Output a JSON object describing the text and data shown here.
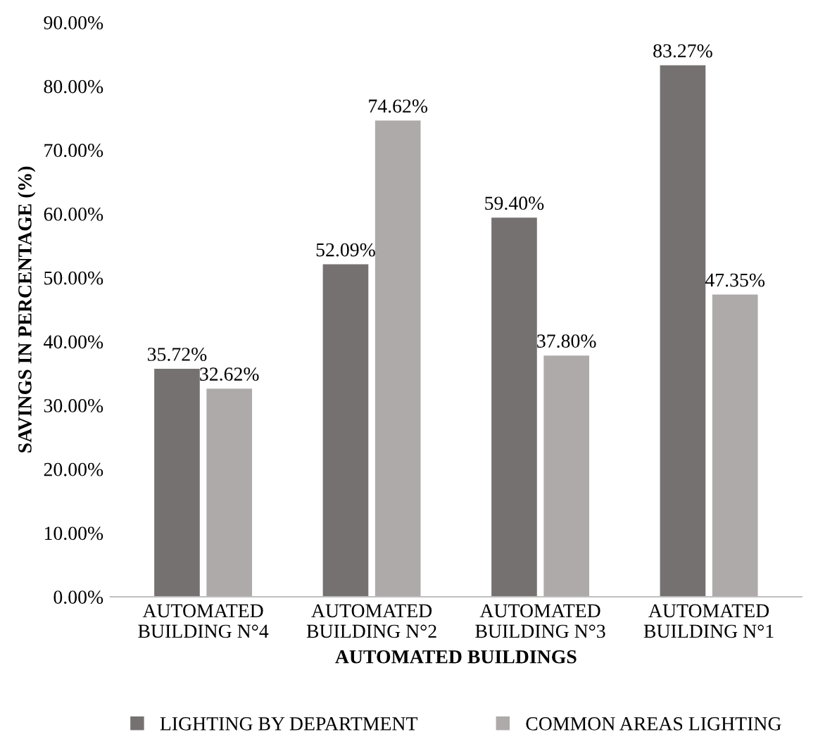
{
  "chart_data": {
    "type": "bar",
    "xlabel": "AUTOMATED BUILDINGS",
    "ylabel": "SAVINGS IN PERCENTAGE (%)",
    "categories": [
      "AUTOMATED\nBUILDING N°4",
      "AUTOMATED\nBUILDING N°2",
      "AUTOMATED\nBUILDING N°3",
      "AUTOMATED\nBUILDING N°1"
    ],
    "series": [
      {
        "name": "LIGHTING BY DEPARTMENT",
        "color": "#767171",
        "values": [
          35.72,
          52.09,
          59.4,
          83.27
        ],
        "value_labels": [
          "35.72%",
          "52.09%",
          "59.40%",
          "83.27%"
        ]
      },
      {
        "name": "COMMON AREAS LIGHTING",
        "color": "#aeaaaa",
        "values": [
          32.62,
          74.62,
          37.8,
          47.35
        ],
        "value_labels": [
          "32.62%",
          "74.62%",
          "37.80%",
          "47.35%"
        ]
      }
    ],
    "ylim": [
      0,
      90
    ],
    "yticks": [
      {
        "value": 0,
        "label": "0.00%"
      },
      {
        "value": 10,
        "label": "10.00%"
      },
      {
        "value": 20,
        "label": "20.00%"
      },
      {
        "value": 30,
        "label": "30.00%"
      },
      {
        "value": 40,
        "label": "40.00%"
      },
      {
        "value": 50,
        "label": "50.00%"
      },
      {
        "value": 60,
        "label": "60.00%"
      },
      {
        "value": 70,
        "label": "70.00%"
      },
      {
        "value": 80,
        "label": "80.00%"
      },
      {
        "value": 90,
        "label": "90.00%"
      }
    ],
    "grid": false,
    "legend": "bottom"
  }
}
